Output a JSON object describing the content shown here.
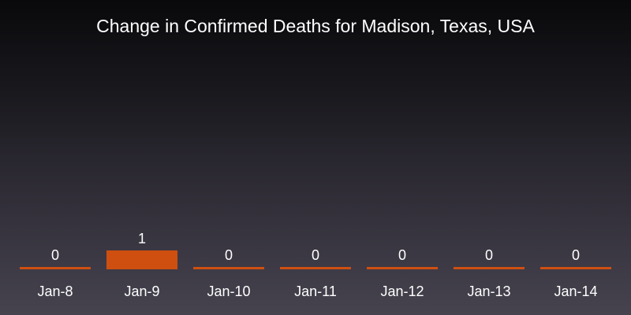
{
  "chart_data": {
    "type": "bar",
    "title": "Change in Confirmed Deaths for Madison, Texas, USA",
    "categories": [
      "Jan-8",
      "Jan-9",
      "Jan-10",
      "Jan-11",
      "Jan-12",
      "Jan-13",
      "Jan-14"
    ],
    "values": [
      0,
      1,
      0,
      0,
      0,
      0,
      0
    ],
    "value_labels": [
      "0",
      "1",
      "0",
      "0",
      "0",
      "0",
      "0"
    ],
    "xlabel": "",
    "ylabel": "",
    "grid": false,
    "legend": "none",
    "bar_color": "#cf4f10"
  }
}
